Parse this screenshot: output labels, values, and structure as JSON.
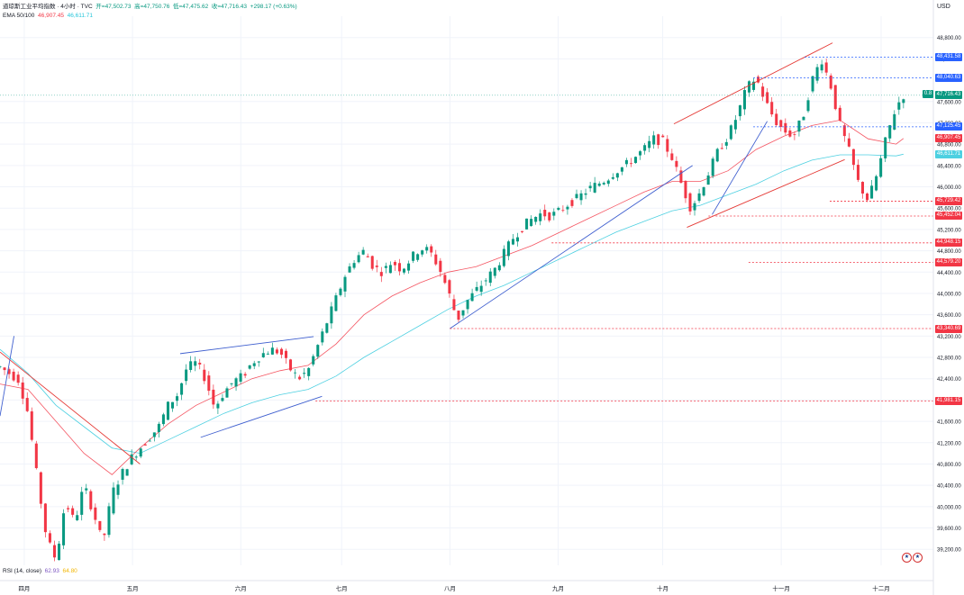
{
  "legend": {
    "symbol": "道琼斯工业平均指数 · 4小时 · TVC",
    "open": "开=47,502.73",
    "high": "高=47,750.76",
    "low": "低=47,475.62",
    "close": "收=47,716.43",
    "change": "+298.17 (+0.63%)",
    "ema_label": "EMA 50/100",
    "ema50_value": "46,907.45",
    "ema100_value": "46,611.71"
  },
  "rsi_legend": {
    "label": "RSI (14, close)",
    "v1": "62.93",
    "v2": "64.80"
  },
  "currency": "USD",
  "current_badge": "0.8",
  "colors": {
    "up": "#089981",
    "down": "#f23645",
    "ema50": "#f23645",
    "ema100": "#4dd0e1",
    "channel_red": "#e53935",
    "trend_blue": "#3f5fcf",
    "tag_blue": "#2962ff"
  },
  "chart_data": {
    "type": "candlestick",
    "timeframe": "4小时",
    "ylim": [
      38900,
      49200
    ],
    "x_range": [
      0,
      100
    ],
    "price_ticks": [
      "48,800.00",
      "48,400.00",
      "47,600.00",
      "47,200.00",
      "46,800.00",
      "46,400.00",
      "46,000.00",
      "45,600.00",
      "45,200.00",
      "44,800.00",
      "44,400.00",
      "44,000.00",
      "43,600.00",
      "43,200.00",
      "42,800.00",
      "42,400.00",
      "42,000.00",
      "41,600.00",
      "41,200.00",
      "40,800.00",
      "40,400.00",
      "40,000.00",
      "39,600.00",
      "39,200.00"
    ],
    "months": [
      {
        "label": "四月",
        "x": 2.6
      },
      {
        "label": "五月",
        "x": 14.2
      },
      {
        "label": "六月",
        "x": 25.8
      },
      {
        "label": "七月",
        "x": 36.6
      },
      {
        "label": "八月",
        "x": 48.2
      },
      {
        "label": "九月",
        "x": 59.8
      },
      {
        "label": "十月",
        "x": 71.0
      },
      {
        "label": "十一月",
        "x": 83.7
      },
      {
        "label": "十二月",
        "x": 94.4
      }
    ],
    "price_path": [
      [
        0,
        42620
      ],
      [
        2,
        42380
      ],
      [
        3,
        41750
      ],
      [
        4,
        40500
      ],
      [
        5,
        39400
      ],
      [
        6,
        39000
      ],
      [
        7,
        40100
      ],
      [
        8,
        39700
      ],
      [
        9,
        40400
      ],
      [
        10,
        39900
      ],
      [
        11,
        39300
      ],
      [
        12,
        40250
      ],
      [
        13,
        40600
      ],
      [
        14,
        40900
      ],
      [
        15,
        41100
      ],
      [
        16,
        41300
      ],
      [
        17,
        41500
      ],
      [
        18,
        41900
      ],
      [
        19,
        42100
      ],
      [
        20,
        42600
      ],
      [
        21,
        42700
      ],
      [
        22,
        42400
      ],
      [
        23,
        41850
      ],
      [
        24,
        42150
      ],
      [
        25,
        42350
      ],
      [
        26,
        42450
      ],
      [
        27,
        42700
      ],
      [
        28,
        42850
      ],
      [
        29,
        42950
      ],
      [
        30,
        42900
      ],
      [
        31,
        42600
      ],
      [
        32,
        42400
      ],
      [
        33,
        42550
      ],
      [
        34,
        43000
      ],
      [
        35,
        43450
      ],
      [
        36,
        43900
      ],
      [
        37,
        44350
      ],
      [
        38,
        44650
      ],
      [
        39,
        44800
      ],
      [
        40,
        44500
      ],
      [
        41,
        44400
      ],
      [
        42,
        44600
      ],
      [
        43,
        44450
      ],
      [
        44,
        44650
      ],
      [
        45,
        44850
      ],
      [
        46,
        44800
      ],
      [
        47,
        44500
      ],
      [
        48,
        44050
      ],
      [
        49,
        43500
      ],
      [
        50,
        43850
      ],
      [
        51,
        44050
      ],
      [
        52,
        44250
      ],
      [
        53,
        44450
      ],
      [
        54,
        44750
      ],
      [
        55,
        45050
      ],
      [
        56,
        45250
      ],
      [
        57,
        45400
      ],
      [
        58,
        45500
      ],
      [
        59,
        45450
      ],
      [
        60,
        45550
      ],
      [
        61,
        45700
      ],
      [
        62,
        45800
      ],
      [
        63,
        45950
      ],
      [
        64,
        46050
      ],
      [
        65,
        46150
      ],
      [
        66,
        46300
      ],
      [
        67,
        46400
      ],
      [
        68,
        46550
      ],
      [
        69,
        46700
      ],
      [
        70,
        46900
      ],
      [
        71,
        46850
      ],
      [
        72,
        46550
      ],
      [
        73,
        46050
      ],
      [
        74,
        45600
      ],
      [
        75,
        45900
      ],
      [
        76,
        46300
      ],
      [
        77,
        46700
      ],
      [
        78,
        46950
      ],
      [
        79,
        47350
      ],
      [
        80,
        47850
      ],
      [
        81,
        48050
      ],
      [
        82,
        47600
      ],
      [
        83,
        47250
      ],
      [
        84,
        47050
      ],
      [
        85,
        46950
      ],
      [
        86,
        47300
      ],
      [
        87,
        48000
      ],
      [
        88,
        48400
      ],
      [
        89,
        47900
      ],
      [
        90,
        47150
      ],
      [
        91,
        46650
      ],
      [
        92,
        46050
      ],
      [
        93,
        45750
      ],
      [
        94,
        46250
      ],
      [
        95,
        46950
      ],
      [
        96,
        47500
      ],
      [
        96.8,
        47720
      ]
    ],
    "ema50": [
      [
        0,
        42300
      ],
      [
        3,
        42200
      ],
      [
        6,
        41600
      ],
      [
        9,
        41000
      ],
      [
        12,
        40600
      ],
      [
        15,
        41100
      ],
      [
        18,
        41550
      ],
      [
        21,
        41900
      ],
      [
        24,
        42150
      ],
      [
        27,
        42400
      ],
      [
        30,
        42550
      ],
      [
        33,
        42650
      ],
      [
        36,
        43050
      ],
      [
        39,
        43600
      ],
      [
        42,
        43950
      ],
      [
        45,
        44200
      ],
      [
        48,
        44400
      ],
      [
        51,
        44500
      ],
      [
        54,
        44700
      ],
      [
        57,
        44900
      ],
      [
        60,
        45150
      ],
      [
        63,
        45400
      ],
      [
        66,
        45650
      ],
      [
        69,
        45900
      ],
      [
        72,
        46100
      ],
      [
        75,
        46100
      ],
      [
        78,
        46300
      ],
      [
        81,
        46700
      ],
      [
        84,
        46950
      ],
      [
        87,
        47150
      ],
      [
        90,
        47250
      ],
      [
        93,
        46900
      ],
      [
        96,
        46800
      ],
      [
        96.8,
        46907
      ]
    ],
    "ema100": [
      [
        0,
        42950
      ],
      [
        3,
        42500
      ],
      [
        6,
        41900
      ],
      [
        9,
        41500
      ],
      [
        12,
        41100
      ],
      [
        15,
        41000
      ],
      [
        18,
        41250
      ],
      [
        21,
        41500
      ],
      [
        24,
        41750
      ],
      [
        27,
        41950
      ],
      [
        30,
        42100
      ],
      [
        33,
        42200
      ],
      [
        36,
        42450
      ],
      [
        39,
        42800
      ],
      [
        42,
        43100
      ],
      [
        45,
        43400
      ],
      [
        48,
        43700
      ],
      [
        51,
        43950
      ],
      [
        54,
        44150
      ],
      [
        57,
        44400
      ],
      [
        60,
        44650
      ],
      [
        63,
        44900
      ],
      [
        66,
        45150
      ],
      [
        69,
        45350
      ],
      [
        72,
        45550
      ],
      [
        75,
        45650
      ],
      [
        78,
        45850
      ],
      [
        81,
        46050
      ],
      [
        84,
        46300
      ],
      [
        87,
        46500
      ],
      [
        90,
        46600
      ],
      [
        93,
        46600
      ],
      [
        96,
        46580
      ],
      [
        96.8,
        46612
      ]
    ],
    "trend_lines": [
      {
        "color": "red",
        "from": [
          0,
          42900
        ],
        "to": [
          15,
          40800
        ]
      },
      {
        "color": "blue",
        "from": [
          0,
          41700
        ],
        "to": [
          1.5,
          43200
        ]
      },
      {
        "color": "blue",
        "from": [
          19.3,
          42870
        ],
        "to": [
          33.6,
          43190
        ]
      },
      {
        "color": "blue",
        "from": [
          21.5,
          41300
        ],
        "to": [
          34.5,
          42070
        ]
      },
      {
        "color": "blue",
        "from": [
          48.2,
          43340
        ],
        "to": [
          74.2,
          46400
        ]
      },
      {
        "color": "red",
        "from": [
          72.2,
          47180
        ],
        "to": [
          89.2,
          48700
        ]
      },
      {
        "color": "red",
        "from": [
          73.6,
          45240
        ],
        "to": [
          90.5,
          46510
        ]
      },
      {
        "color": "blue",
        "from": [
          76.3,
          45480
        ],
        "to": [
          82.2,
          47230
        ]
      }
    ],
    "horizontal_levels": [
      {
        "value": 48431.58,
        "label": "48,431.58",
        "color": "blue",
        "x_start": 86.2
      },
      {
        "value": 48040.63,
        "label": "48,040.63",
        "color": "blue",
        "x_start": 80.7
      },
      {
        "value": 47125.45,
        "label": "47,125.45",
        "color": "blue",
        "x_start": 80.7
      },
      {
        "value": 45729.42,
        "label": "45,729.42",
        "color": "red",
        "x_start": 88.9
      },
      {
        "value": 45452.04,
        "label": "45,452.04",
        "color": "red",
        "x_start": 75.9
      },
      {
        "value": 44948.15,
        "label": "44,948.15",
        "color": "red",
        "x_start": 59.1
      },
      {
        "value": 44579.2,
        "label": "44,579.20",
        "color": "red",
        "x_start": 80.2
      },
      {
        "value": 43340.69,
        "label": "43,340.69",
        "color": "red",
        "x_start": 48.2
      },
      {
        "value": 41981.15,
        "label": "41,981.15",
        "color": "red",
        "x_start": 33.8
      }
    ],
    "price_tags": [
      {
        "label": "47,716.43",
        "value": 47716.43,
        "color": "#089981"
      },
      {
        "label": "46,907.45",
        "value": 46907.45,
        "color": "#f23645"
      },
      {
        "label": "46,611.71",
        "value": 46611.71,
        "color": "#4dd0e1"
      }
    ]
  }
}
